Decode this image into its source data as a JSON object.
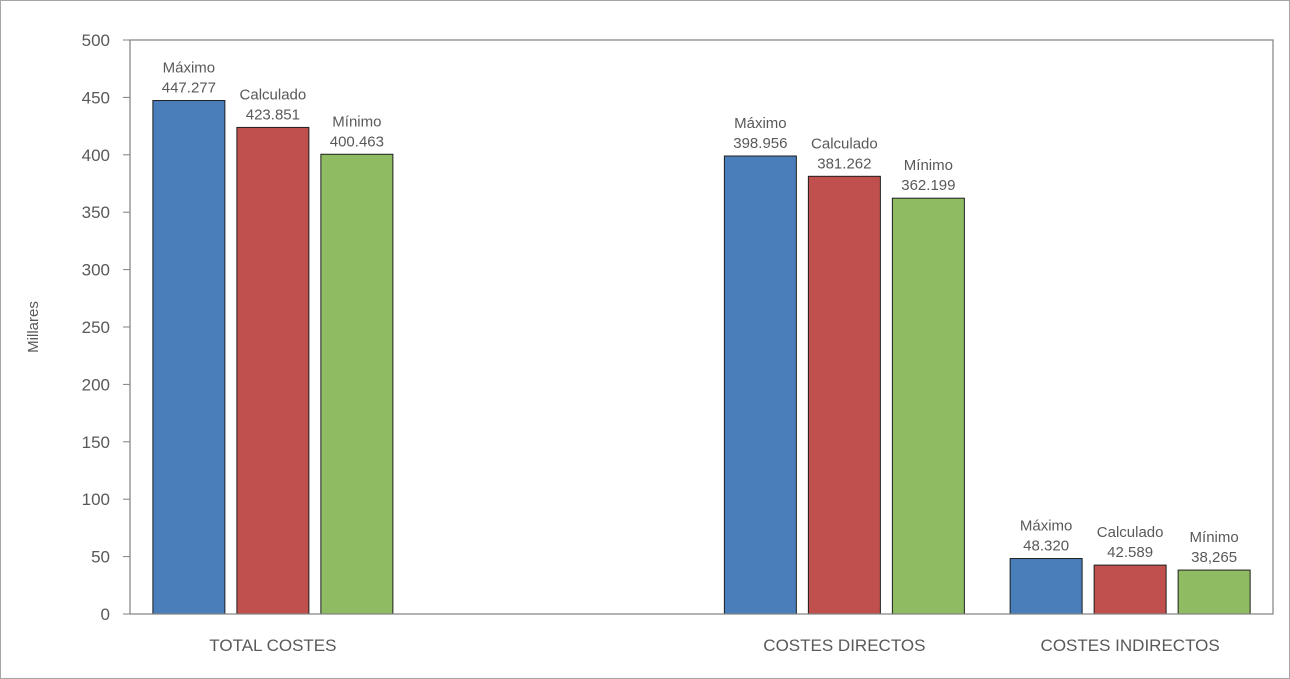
{
  "chart_data": {
    "type": "bar",
    "ylabel": "Millares",
    "ylim": [
      0,
      500
    ],
    "ytick_step": 50,
    "yticks": [
      "0",
      "50",
      "100",
      "150",
      "200",
      "250",
      "300",
      "350",
      "400",
      "450",
      "500"
    ],
    "grid": false,
    "categories": [
      "TOTAL COSTES",
      "",
      "COSTES DIRECTOS",
      "COSTES INDIRECTOS"
    ],
    "series": [
      {
        "name": "Máximo",
        "color": "#4a7ebb",
        "values": [
          447.277,
          null,
          398.956,
          48.32
        ],
        "labels": [
          "447.277",
          "",
          "398.956",
          "48.320"
        ]
      },
      {
        "name": "Calculado",
        "color": "#c0504d",
        "values": [
          423.851,
          null,
          381.262,
          42.589
        ],
        "labels": [
          "423.851",
          "",
          "381.262",
          "42.589"
        ]
      },
      {
        "name": "Mínimo",
        "color": "#8fbc63",
        "values": [
          400.463,
          null,
          362.199,
          38.265
        ],
        "labels": [
          "400.463",
          "",
          "362.199",
          "38,265"
        ]
      }
    ]
  }
}
